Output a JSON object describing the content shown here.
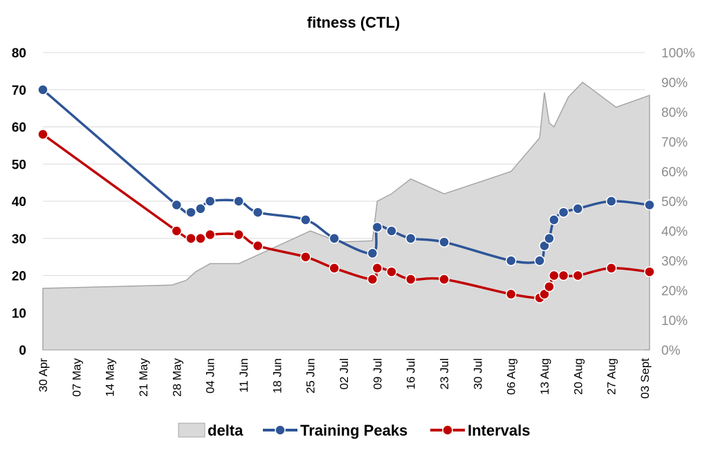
{
  "chart_data": {
    "type": "line",
    "title": "fitness (CTL)",
    "x_ticks": [
      "30 Apr",
      "07 May",
      "14 May",
      "21 May",
      "28 May",
      "04 Jun",
      "11 Jun",
      "18 Jun",
      "25 Jun",
      "02 Jul",
      "09 Jul",
      "16 Jul",
      "23 Jul",
      "30 Jul",
      "06 Aug",
      "13 Aug",
      "20 Aug",
      "27 Aug",
      "03 Sept"
    ],
    "x_range": [
      "2024-04-30",
      "2024-09-03"
    ],
    "y_left": {
      "ticks": [
        "0",
        "10",
        "20",
        "30",
        "40",
        "50",
        "60",
        "70",
        "80"
      ],
      "range": [
        0,
        80
      ]
    },
    "y_right": {
      "ticks": [
        "0%",
        "10%",
        "20%",
        "30%",
        "40%",
        "50%",
        "60%",
        "70%",
        "80%",
        "90%",
        "100%"
      ],
      "range": [
        0,
        100
      ]
    },
    "grid": true,
    "legend_position": "bottom",
    "series": [
      {
        "name": "delta",
        "type": "area",
        "axis": "right",
        "color": "#d9d9d9",
        "edge_color": "#a6a6a6",
        "points": [
          [
            "2024-04-30",
            20.7
          ],
          [
            "2024-05-27",
            21.8
          ],
          [
            "2024-05-30",
            23.4
          ],
          [
            "2024-06-01",
            26.3
          ],
          [
            "2024-06-04",
            29
          ],
          [
            "2024-06-10",
            29
          ],
          [
            "2024-06-25",
            40
          ],
          [
            "2024-07-01",
            36.3
          ],
          [
            "2024-07-08",
            36.7
          ],
          [
            "2024-07-09",
            50
          ],
          [
            "2024-07-12",
            52.5
          ],
          [
            "2024-07-16",
            57.5
          ],
          [
            "2024-07-23",
            52.5
          ],
          [
            "2024-08-06",
            60
          ],
          [
            "2024-08-12",
            71.3
          ],
          [
            "2024-08-13",
            86.6
          ],
          [
            "2024-08-14",
            76.3
          ],
          [
            "2024-08-15",
            75
          ],
          [
            "2024-08-18",
            85
          ],
          [
            "2024-08-21",
            90
          ],
          [
            "2024-08-28",
            81.6
          ],
          [
            "2024-09-04",
            85.6
          ]
        ]
      },
      {
        "name": "Training Peaks",
        "type": "line",
        "axis": "left",
        "color": "#2e5597",
        "points": [
          [
            "2024-04-30",
            70
          ],
          [
            "2024-05-28",
            39
          ],
          [
            "2024-05-31",
            37
          ],
          [
            "2024-06-02",
            38
          ],
          [
            "2024-06-04",
            40
          ],
          [
            "2024-06-10",
            40
          ],
          [
            "2024-06-14",
            37
          ],
          [
            "2024-06-24",
            35
          ],
          [
            "2024-06-30",
            30
          ],
          [
            "2024-07-08",
            26
          ],
          [
            "2024-07-09",
            33
          ],
          [
            "2024-07-12",
            32
          ],
          [
            "2024-07-16",
            30
          ],
          [
            "2024-07-23",
            29
          ],
          [
            "2024-08-06",
            24
          ],
          [
            "2024-08-12",
            24
          ],
          [
            "2024-08-13",
            28
          ],
          [
            "2024-08-14",
            30
          ],
          [
            "2024-08-15",
            35
          ],
          [
            "2024-08-17",
            37
          ],
          [
            "2024-08-20",
            38
          ],
          [
            "2024-08-27",
            40
          ],
          [
            "2024-09-04",
            39
          ]
        ]
      },
      {
        "name": "Intervals",
        "type": "line",
        "axis": "left",
        "color": "#c00000",
        "points": [
          [
            "2024-04-30",
            58
          ],
          [
            "2024-05-28",
            32
          ],
          [
            "2024-05-31",
            30
          ],
          [
            "2024-06-02",
            30
          ],
          [
            "2024-06-04",
            31
          ],
          [
            "2024-06-10",
            31
          ],
          [
            "2024-06-14",
            28
          ],
          [
            "2024-06-24",
            25
          ],
          [
            "2024-06-30",
            22
          ],
          [
            "2024-07-08",
            19
          ],
          [
            "2024-07-09",
            22
          ],
          [
            "2024-07-12",
            21
          ],
          [
            "2024-07-16",
            19
          ],
          [
            "2024-07-23",
            19
          ],
          [
            "2024-08-06",
            15
          ],
          [
            "2024-08-12",
            14
          ],
          [
            "2024-08-13",
            15
          ],
          [
            "2024-08-14",
            17
          ],
          [
            "2024-08-15",
            20
          ],
          [
            "2024-08-17",
            20
          ],
          [
            "2024-08-20",
            20
          ],
          [
            "2024-08-27",
            22
          ],
          [
            "2024-09-04",
            21
          ]
        ]
      }
    ]
  }
}
